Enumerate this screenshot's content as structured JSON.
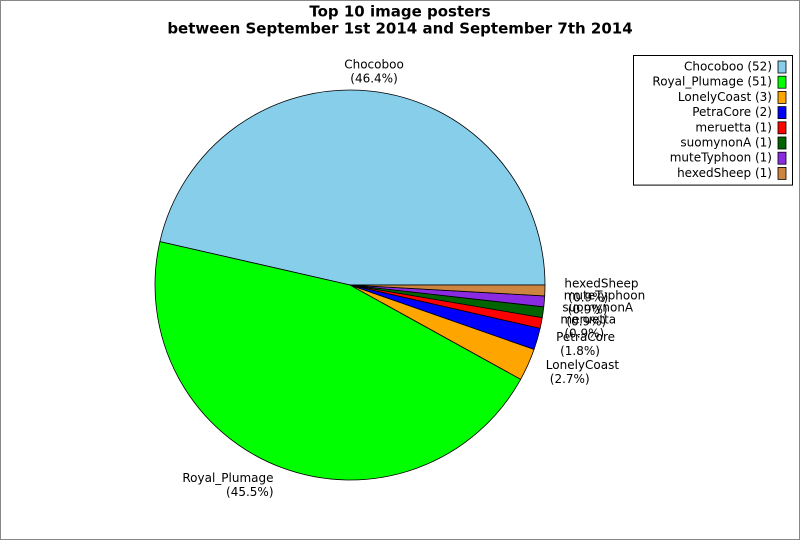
{
  "chart_data": {
    "type": "pie",
    "title": [
      "Top 10 image posters",
      "between September 1st 2014 and September 7th 2014"
    ],
    "categories": [
      "Chocoboo",
      "Royal_Plumage",
      "LonelyCoast",
      "PetraCore",
      "meruetta",
      "suomynonA",
      "muteTyphoon",
      "hexedSheep"
    ],
    "values": [
      52,
      51,
      3,
      2,
      1,
      1,
      1,
      1
    ],
    "legend_labels": [
      "Chocoboo (52)",
      "Royal_Plumage (51)",
      "LonelyCoast (3)",
      "PetraCore (2)",
      "meruetta (1)",
      "suomynonA (1)",
      "muteTyphoon (1)",
      "hexedSheep (1)"
    ],
    "percents": [
      46.4,
      45.5,
      2.7,
      1.8,
      0.9,
      0.9,
      0.9,
      0.9
    ],
    "percent_labels": [
      "(46.4%)",
      "(45.5%)",
      "(2.7%)",
      "(1.8%)",
      "(0.9%)",
      "(0.9%)",
      "(0.9%)",
      "(0.9%)"
    ],
    "colors": [
      "#87ceeb",
      "#00ff00",
      "#ffa500",
      "#0000ff",
      "#ff0000",
      "#006400",
      "#8a2be2",
      "#cd853f"
    ],
    "legend": "upper right"
  }
}
